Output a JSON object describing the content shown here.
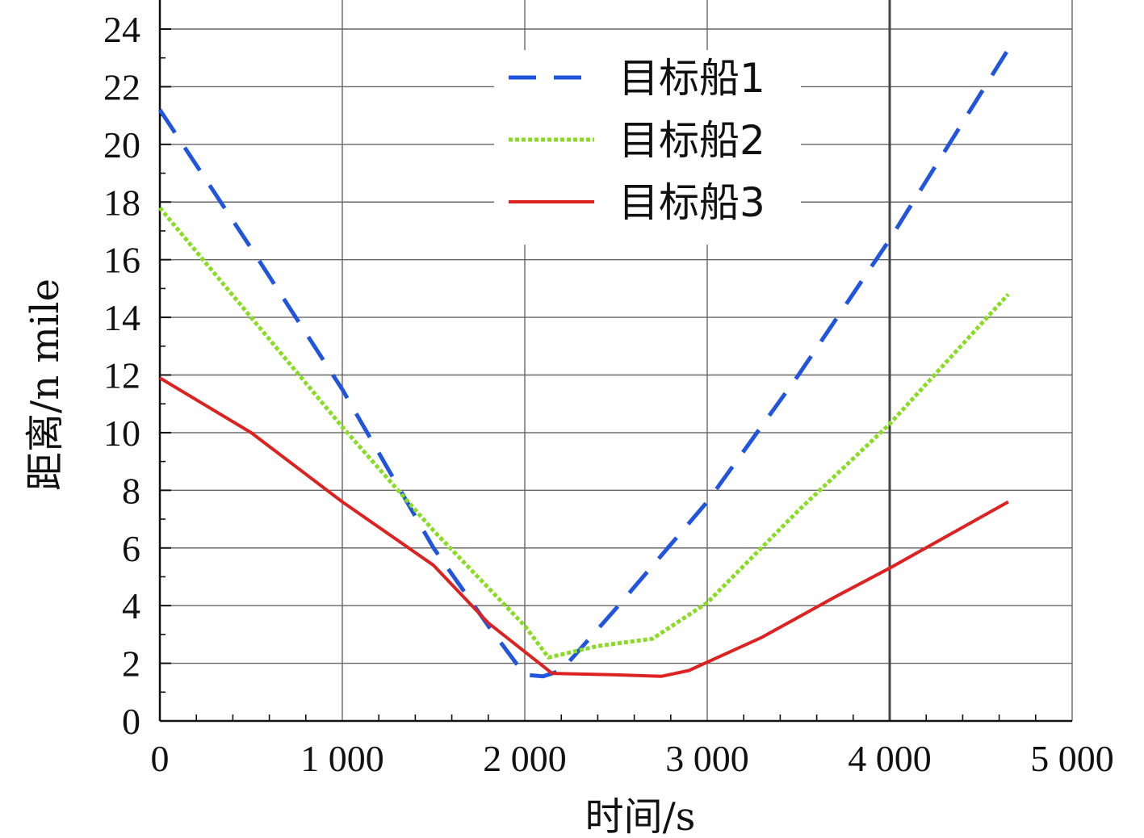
{
  "chart_data": {
    "type": "line",
    "title": "",
    "xlabel": "时间/s",
    "ylabel": "距离/n mile",
    "xlim": [
      0,
      5000
    ],
    "ylim": [
      0,
      24
    ],
    "x_ticks": [
      0,
      1000,
      2000,
      3000,
      4000,
      5000
    ],
    "x_tick_labels": [
      "0",
      "1 000",
      "2 000",
      "3 000",
      "4 000",
      "5 000"
    ],
    "y_ticks": [
      0,
      2,
      4,
      6,
      8,
      10,
      12,
      14,
      16,
      18,
      20,
      22,
      24
    ],
    "y_tick_labels": [
      "0",
      "2",
      "4",
      "6",
      "8",
      "10",
      "12",
      "14",
      "16",
      "18",
      "20",
      "22",
      "24"
    ],
    "grid": true,
    "legend_position": "top-center",
    "series": [
      {
        "name": "目标船1",
        "color": "#2255dd",
        "style": "dashed",
        "points": [
          [
            0,
            21.2
          ],
          [
            500,
            16.4
          ],
          [
            1000,
            11.5
          ],
          [
            1500,
            6.0
          ],
          [
            1800,
            3.3
          ],
          [
            2000,
            1.6
          ],
          [
            2100,
            1.55
          ],
          [
            2200,
            1.75
          ],
          [
            2500,
            3.9
          ],
          [
            3000,
            7.6
          ],
          [
            3500,
            12.0
          ],
          [
            4000,
            16.7
          ],
          [
            4650,
            23.3
          ]
        ]
      },
      {
        "name": "目标船2",
        "color": "#88dd22",
        "style": "dotted",
        "points": [
          [
            0,
            17.8
          ],
          [
            500,
            14.0
          ],
          [
            1000,
            10.2
          ],
          [
            1500,
            6.6
          ],
          [
            2000,
            3.3
          ],
          [
            2130,
            2.2
          ],
          [
            2400,
            2.6
          ],
          [
            2700,
            2.85
          ],
          [
            3000,
            4.1
          ],
          [
            3500,
            7.3
          ],
          [
            4000,
            10.3
          ],
          [
            4650,
            14.8
          ]
        ]
      },
      {
        "name": "目标船3",
        "color": "#dd2222",
        "style": "solid",
        "points": [
          [
            0,
            11.9
          ],
          [
            500,
            10.0
          ],
          [
            1000,
            7.6
          ],
          [
            1500,
            5.4
          ],
          [
            1800,
            3.4
          ],
          [
            2150,
            1.65
          ],
          [
            2500,
            1.6
          ],
          [
            2750,
            1.55
          ],
          [
            2900,
            1.75
          ],
          [
            3300,
            2.9
          ],
          [
            3700,
            4.3
          ],
          [
            4000,
            5.3
          ],
          [
            4650,
            7.6
          ]
        ]
      }
    ]
  }
}
